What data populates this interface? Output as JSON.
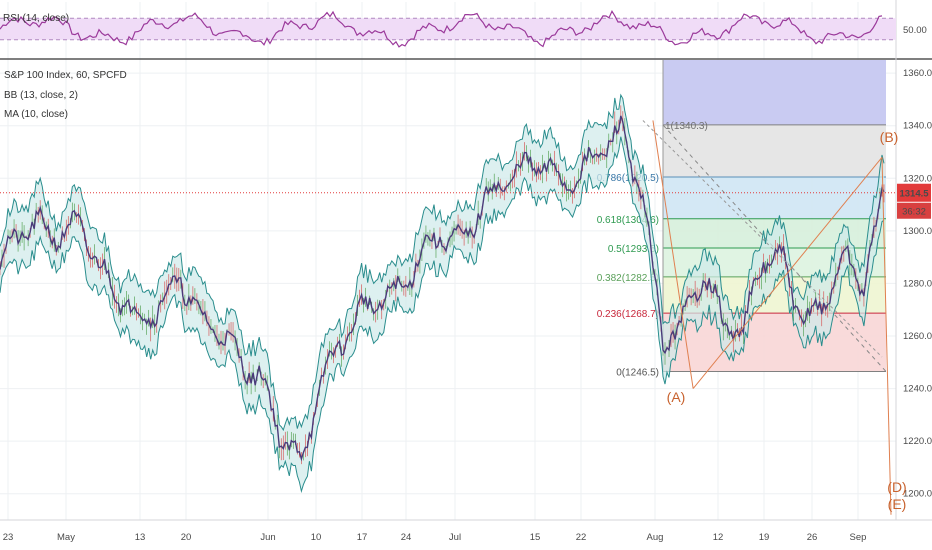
{
  "header": {
    "rsi_legend": "RSI (14, close)",
    "symbol_line": "S&P 100 Index, 60, SPCFD",
    "bb_legend": "BB (13, close, 2)",
    "ma_legend": "MA (10, close)"
  },
  "price": {
    "last": "1314.5",
    "countdown": "36:32"
  },
  "colors": {
    "price_line": "#e23a3a",
    "bb_band": "#2a8d8d",
    "bb_fill": "#cfeaea",
    "ma": "#4a3b7a",
    "rsi": "#9b3a9b",
    "rsi_fill": "#f0dcf7",
    "wave": "#e08050"
  },
  "chart_data": {
    "type": "line",
    "ylim": [
      1190,
      1365
    ],
    "y_ticks": [
      "1360.0",
      "1340.0",
      "1320.0",
      "1300.0",
      "1280.0",
      "1260.0",
      "1240.0",
      "1220.0",
      "1200.0"
    ],
    "x_ticks": [
      "23",
      "May",
      "13",
      "20",
      "Jun",
      "10",
      "17",
      "24",
      "Jul",
      "15",
      "22",
      "Aug",
      "12",
      "19",
      "26",
      "Sep"
    ],
    "rsi": {
      "axis_label": "50.00",
      "upper": 70,
      "lower": 30
    },
    "close_series": {
      "t": [
        0,
        20,
        40,
        60,
        80,
        100,
        120,
        140,
        160,
        180,
        200,
        220,
        240,
        260,
        280,
        300,
        320,
        340,
        360,
        380,
        400,
        420,
        440,
        460,
        480,
        500,
        520,
        540,
        560,
        580,
        600,
        620,
        640,
        660,
        680,
        700,
        720,
        740,
        760,
        780,
        800,
        820,
        840,
        860,
        880
      ],
      "y": [
        1288,
        1300,
        1302,
        1298,
        1303,
        1285,
        1275,
        1266,
        1272,
        1282,
        1266,
        1262,
        1250,
        1244,
        1222,
        1212,
        1243,
        1258,
        1270,
        1274,
        1278,
        1292,
        1299,
        1295,
        1310,
        1318,
        1324,
        1326,
        1318,
        1322,
        1332,
        1338,
        1312,
        1258,
        1265,
        1285,
        1265,
        1262,
        1290,
        1288,
        1265,
        1272,
        1290,
        1280,
        1314.5
      ]
    },
    "fibonacci": [
      {
        "label": "1(1340.3)",
        "value": 1340.3
      },
      {
        "label": "0.786(1320.5)",
        "value": 1320.5
      },
      {
        "label": "0.618(1304.6)",
        "value": 1304.6
      },
      {
        "label": "0.5(1293.5)",
        "value": 1293.5
      },
      {
        "label": "0.382(1282.5)",
        "value": 1282.5
      },
      {
        "label": "0.236(1268.7)",
        "value": 1268.7
      },
      {
        "label": "0(1246.5)",
        "value": 1246.5
      }
    ],
    "waves": [
      {
        "label": "(A)"
      },
      {
        "label": "(B)"
      },
      {
        "label": "(D)"
      },
      {
        "label": "(E)"
      }
    ]
  }
}
